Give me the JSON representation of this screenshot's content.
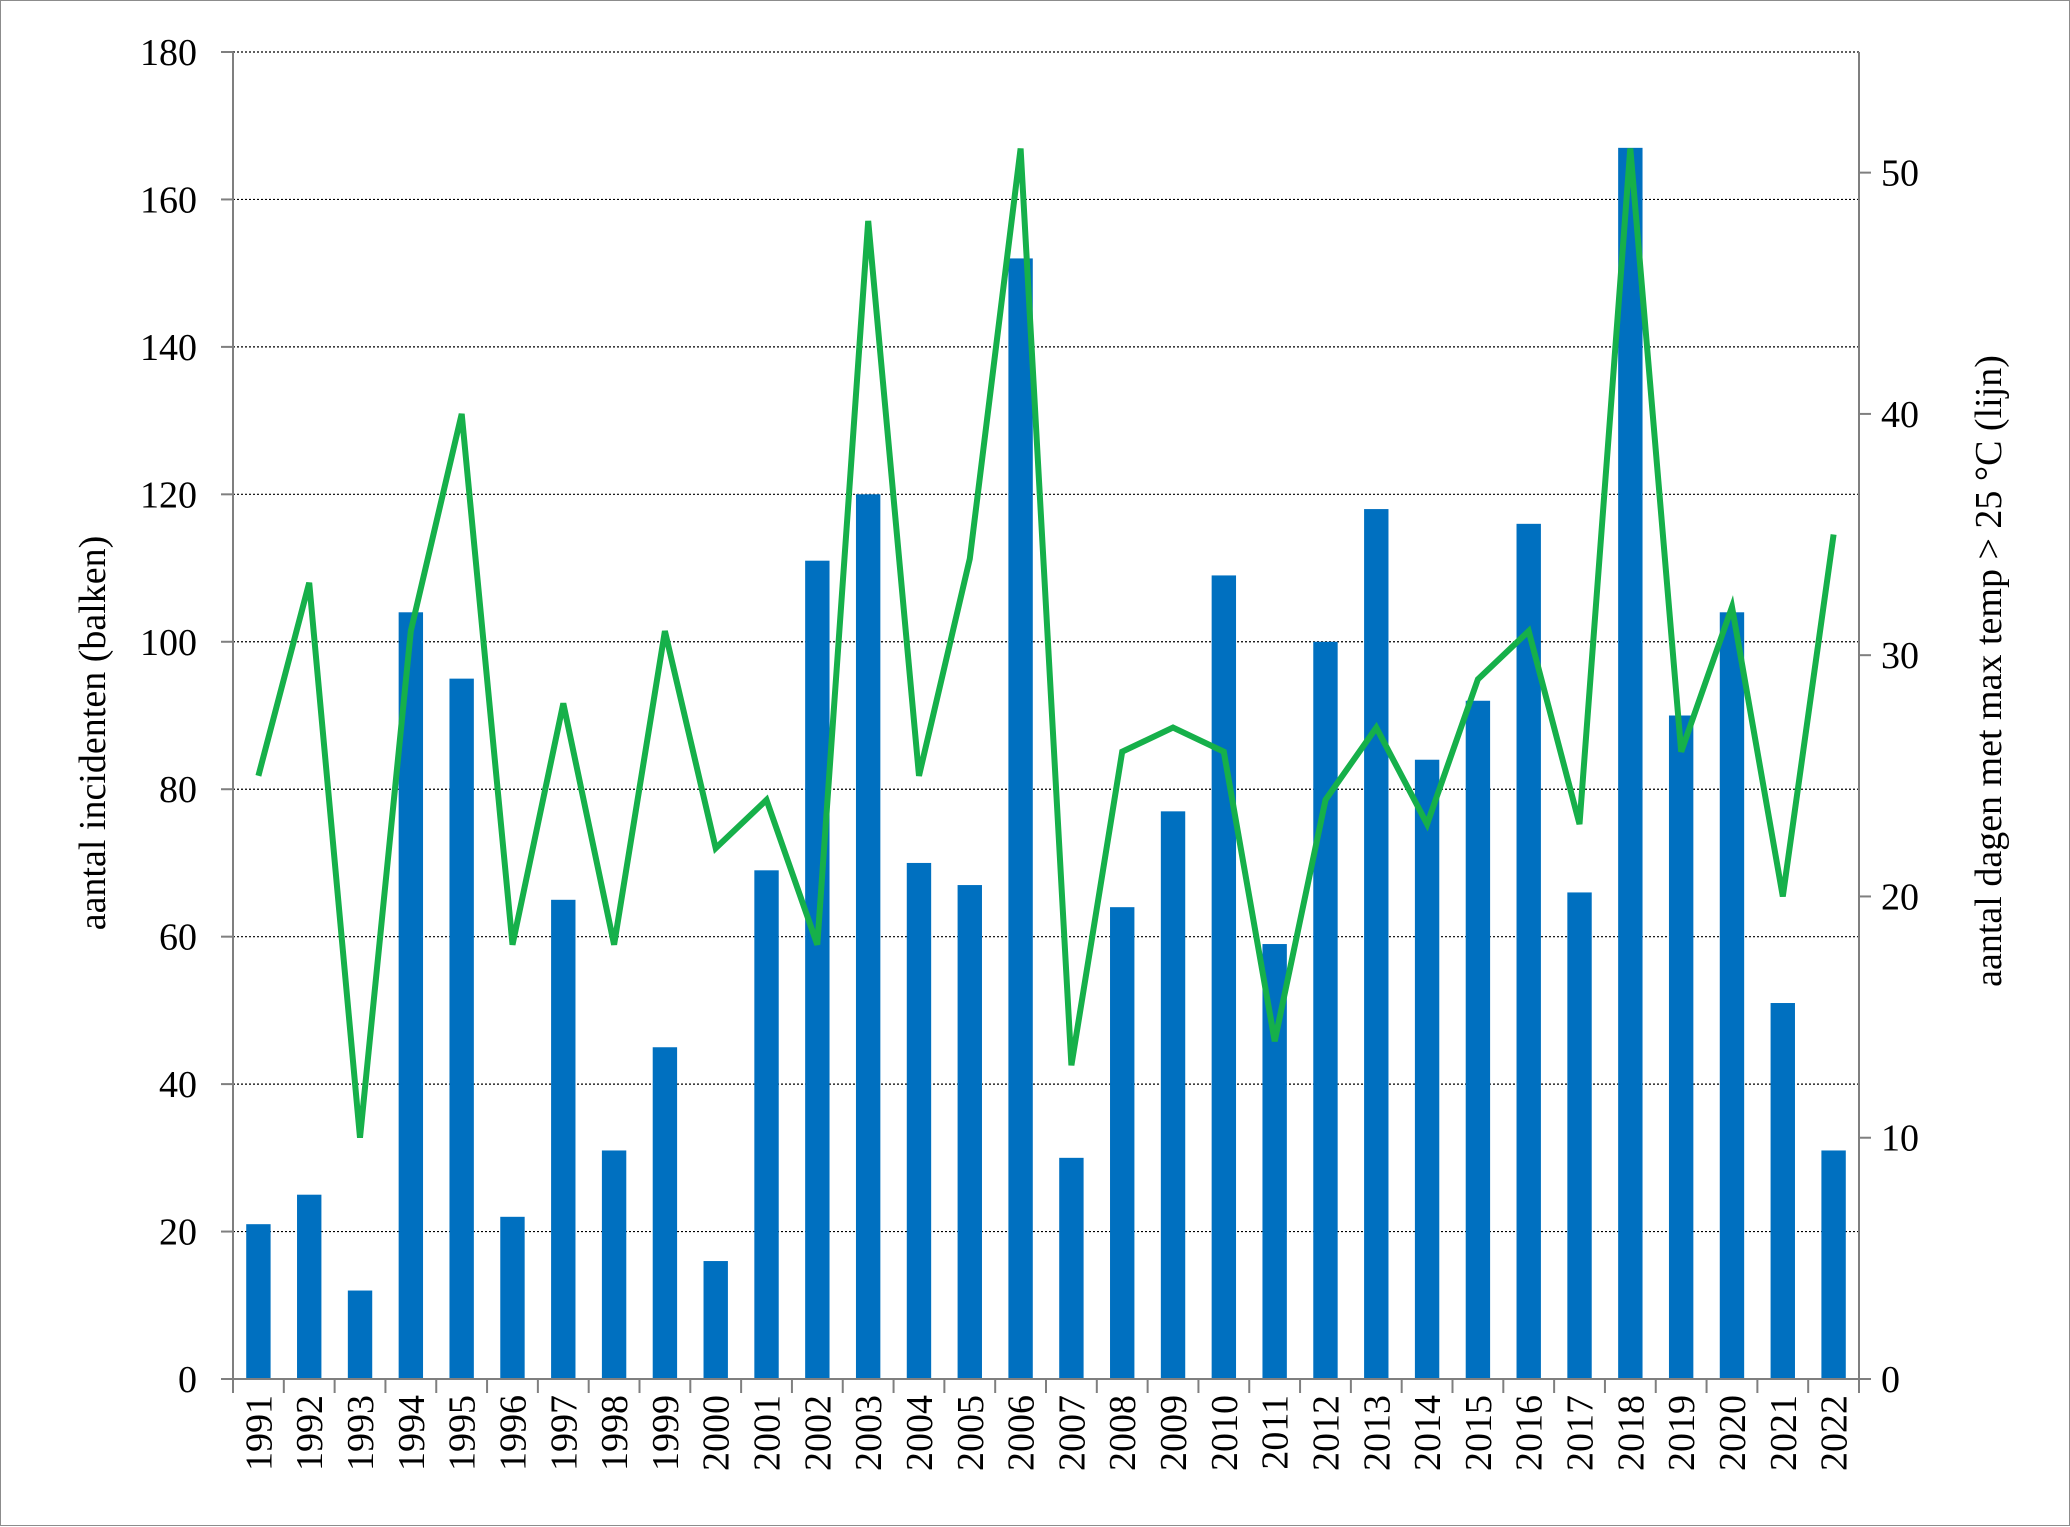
{
  "chart_data": {
    "type": "bar",
    "title": "",
    "xlabel": "",
    "ylabel": "aantal incidenten (balken)",
    "y2label": "aantal dagen met max temp > 25 °C (lijn)",
    "ylim": [
      0,
      180
    ],
    "y2lim": [
      0,
      55
    ],
    "yticks": [
      0,
      20,
      40,
      60,
      80,
      100,
      120,
      140,
      160,
      180
    ],
    "y2ticks": [
      0,
      10,
      20,
      30,
      40,
      50
    ],
    "grid": true,
    "categories": [
      "1991",
      "1992",
      "1993",
      "1994",
      "1995",
      "1996",
      "1997",
      "1998",
      "1999",
      "2000",
      "2001",
      "2002",
      "2003",
      "2004",
      "2005",
      "2006",
      "2007",
      "2008",
      "2009",
      "2010",
      "2011",
      "2012",
      "2013",
      "2014",
      "2015",
      "2016",
      "2017",
      "2018",
      "2019",
      "2020",
      "2021",
      "2022"
    ],
    "series": [
      {
        "type": "bar",
        "axis": "left",
        "color": "#0070c0",
        "values": [
          21,
          25,
          12,
          104,
          95,
          22,
          65,
          31,
          45,
          16,
          69,
          111,
          120,
          70,
          67,
          152,
          30,
          64,
          77,
          109,
          59,
          100,
          118,
          84,
          92,
          116,
          66,
          167,
          90,
          104,
          51,
          31
        ]
      },
      {
        "type": "line",
        "axis": "right",
        "color": "#16b04a",
        "values": [
          25,
          33,
          10,
          31,
          40,
          18,
          28,
          18,
          31,
          22,
          24,
          18,
          48,
          25,
          34,
          51,
          13,
          26,
          27,
          26,
          14,
          24,
          27,
          23,
          29,
          31,
          23,
          51,
          26,
          32,
          20,
          35
        ]
      }
    ]
  }
}
